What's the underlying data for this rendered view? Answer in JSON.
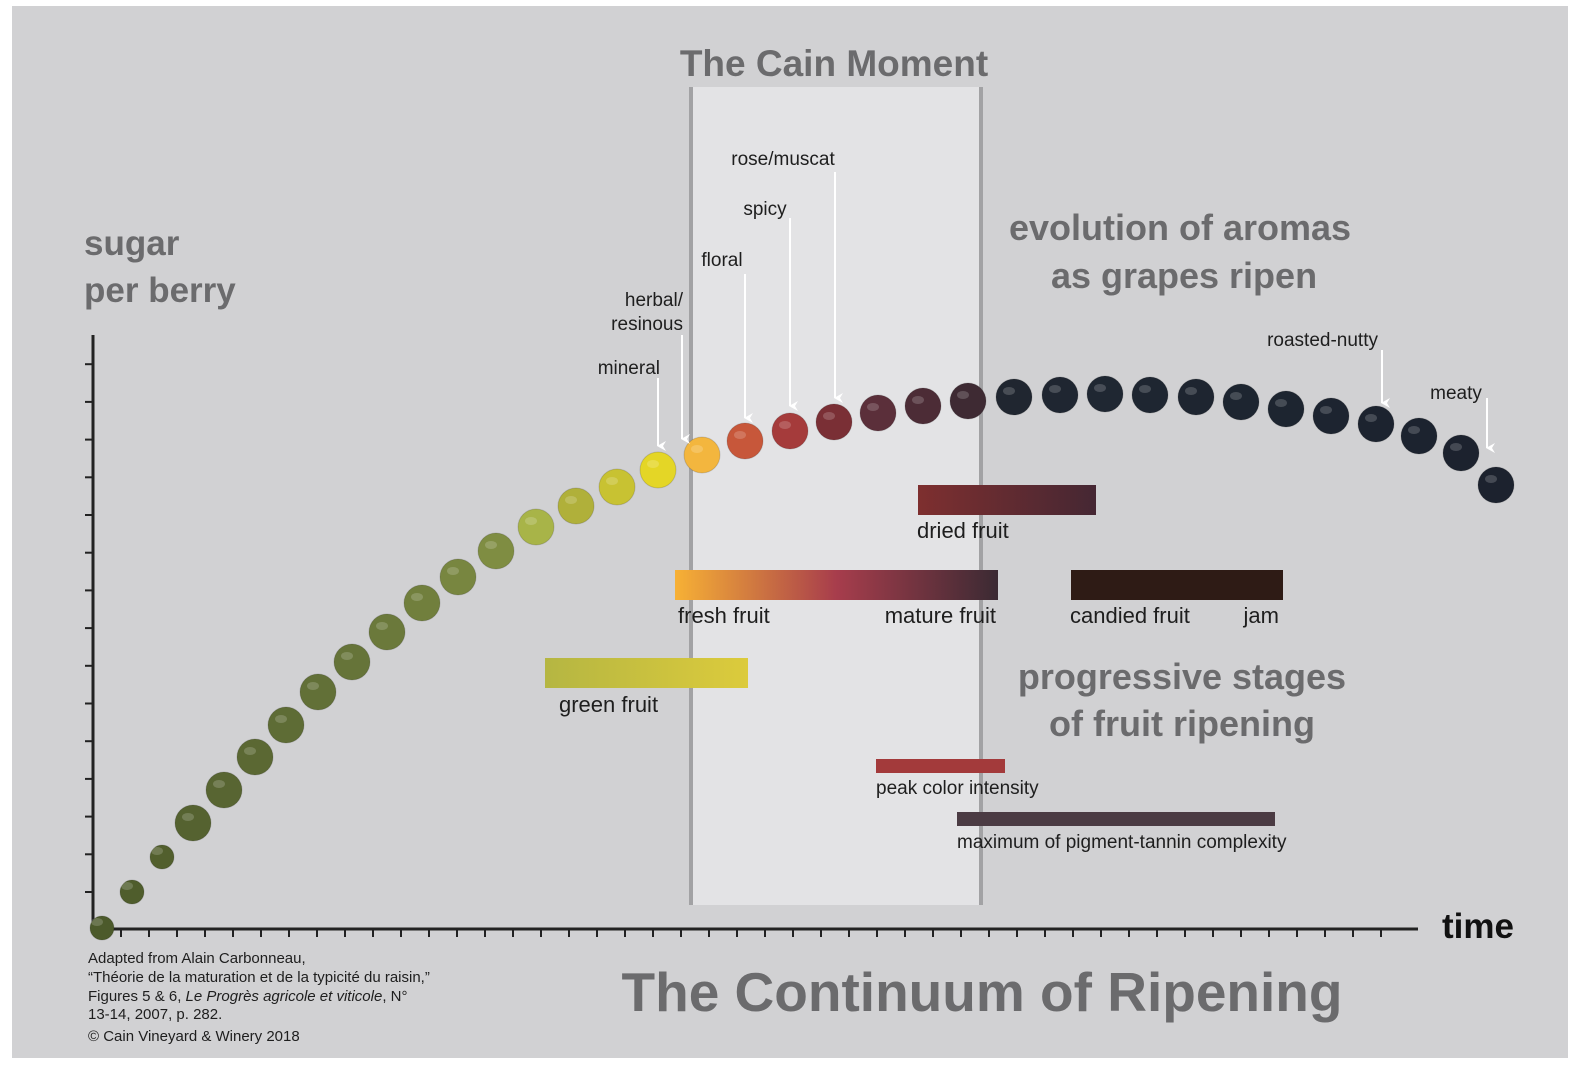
{
  "cain_moment": "The Cain Moment",
  "y_axis_label": [
    "sugar",
    "per berry"
  ],
  "x_axis_label": "time",
  "aroma_heading": [
    "evolution of aromas",
    "as grapes ripen"
  ],
  "aromas": [
    "mineral",
    "herbal/",
    "resinous",
    "floral",
    "spicy",
    "rose/muscat",
    "roasted-nutty",
    "meaty"
  ],
  "stages_heading": [
    "progressive stages",
    "of fruit ripening"
  ],
  "stages": [
    "dried fruit",
    "fresh fruit",
    "mature fruit",
    "candied fruit",
    "jam",
    "green fruit",
    "peak color intensity",
    "maximum of pigment-tannin complexity"
  ],
  "credits": {
    "line1": "Adapted from Alain Carbonneau,",
    "line2": "“Théorie de la maturation et de la typicité du raisin,”",
    "line3": [
      "Figures 5 & 6, ",
      "Le Progrès agricole et viticole",
      ", N°"
    ],
    "line4": "13-14, 2007, p. 282.",
    "copyright": "© Cain Vineyard & Winery 2018"
  },
  "title": "The Continuum of Ripening"
}
